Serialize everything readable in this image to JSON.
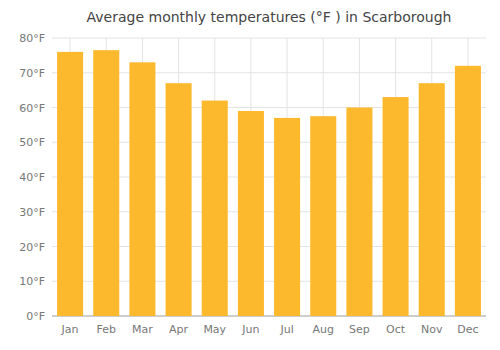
{
  "chart_data": {
    "type": "bar",
    "title": "Average monthly temperatures (°F ) in Scarborough",
    "categories": [
      "Jan",
      "Feb",
      "Mar",
      "Apr",
      "May",
      "Jun",
      "Jul",
      "Aug",
      "Sep",
      "Oct",
      "Nov",
      "Dec"
    ],
    "values": [
      76,
      76.5,
      73,
      67,
      62,
      59,
      57,
      57.5,
      60,
      63,
      67,
      72
    ],
    "color": "#FDB92E",
    "ylim": [
      0,
      80
    ],
    "yticks": [
      {
        "value": 0,
        "label": "0°F"
      },
      {
        "value": 10,
        "label": "10°F"
      },
      {
        "value": 20,
        "label": "20°F"
      },
      {
        "value": 30,
        "label": "30°F"
      },
      {
        "value": 40,
        "label": "40°F"
      },
      {
        "value": 50,
        "label": "50°F"
      },
      {
        "value": 60,
        "label": "60°F"
      },
      {
        "value": 70,
        "label": "70°F"
      },
      {
        "value": 80,
        "label": "80°F"
      }
    ],
    "grid": true
  }
}
